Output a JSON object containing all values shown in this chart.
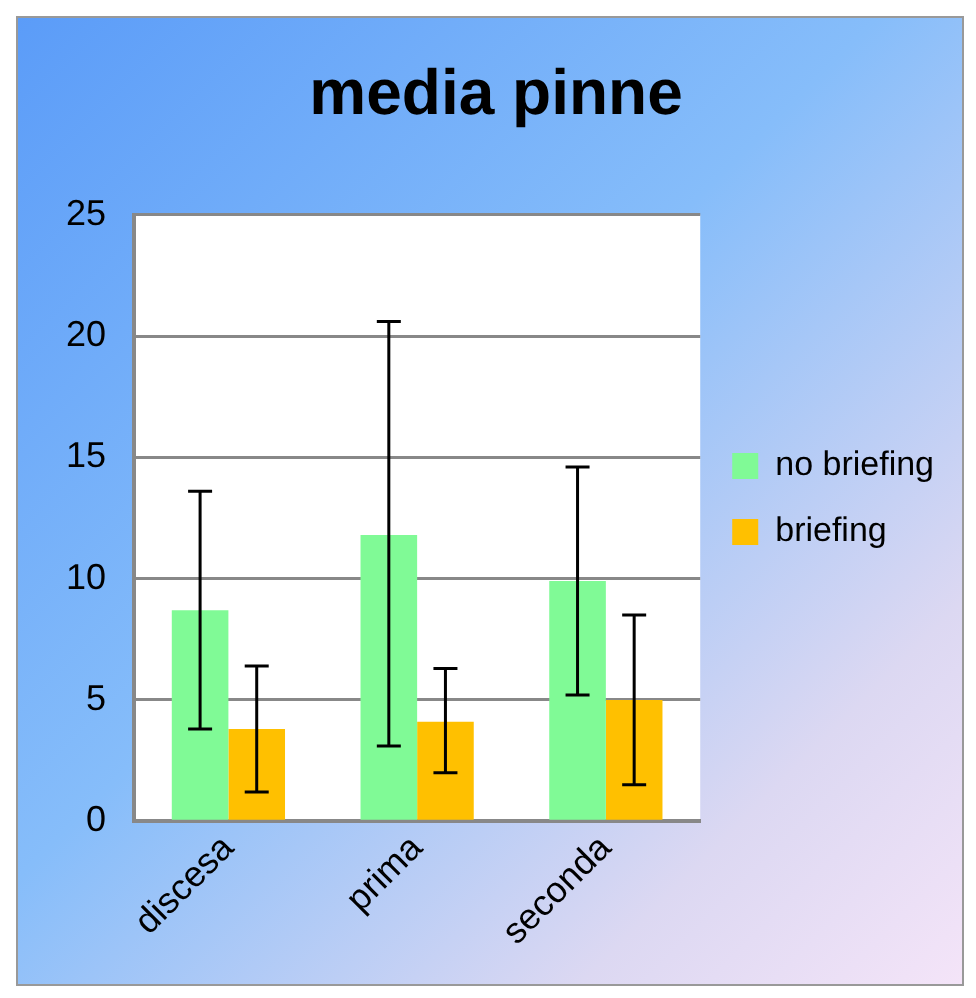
{
  "chart_data": {
    "type": "bar",
    "title": "media pinne",
    "categories": [
      "discesa",
      "prima",
      "seconda"
    ],
    "series": [
      {
        "name": "no briefing",
        "color": "#80fa96",
        "values": [
          8.7,
          11.8,
          9.9
        ],
        "errors": [
          [
            3.8,
            13.6
          ],
          [
            3.1,
            20.6
          ],
          [
            5.2,
            14.6
          ]
        ]
      },
      {
        "name": "briefing",
        "color": "#ffc000",
        "values": [
          3.8,
          4.1,
          5.0
        ],
        "errors": [
          [
            1.2,
            6.4
          ],
          [
            2.0,
            6.3
          ],
          [
            1.5,
            8.5
          ]
        ]
      }
    ],
    "ylim": [
      0,
      25
    ],
    "yticks": [
      0,
      5,
      10,
      15,
      20,
      25
    ],
    "grid": "y",
    "legend": "right"
  }
}
